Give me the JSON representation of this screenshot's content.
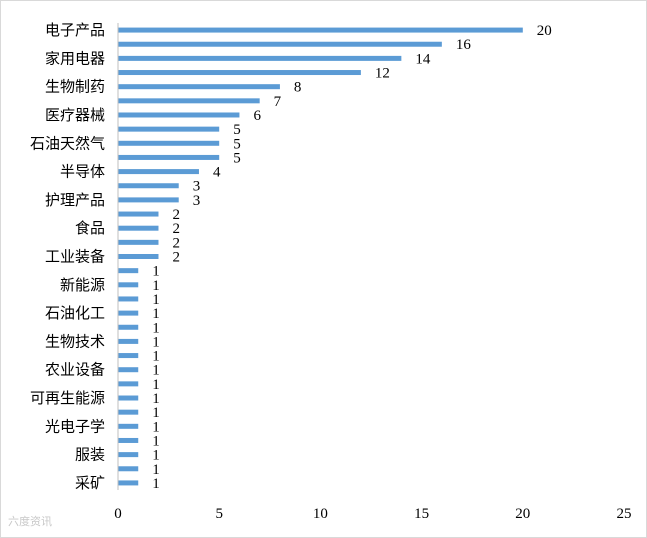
{
  "chart_data": {
    "type": "bar",
    "orientation": "horizontal",
    "bars": [
      {
        "label": "电子产品",
        "value": 20
      },
      {
        "label": "",
        "value": 16
      },
      {
        "label": "家用电器",
        "value": 14
      },
      {
        "label": "",
        "value": 12
      },
      {
        "label": "生物制药",
        "value": 8
      },
      {
        "label": "",
        "value": 7
      },
      {
        "label": "医疗器械",
        "value": 6
      },
      {
        "label": "",
        "value": 5
      },
      {
        "label": "石油天然气",
        "value": 5
      },
      {
        "label": "",
        "value": 5
      },
      {
        "label": "半导体",
        "value": 4
      },
      {
        "label": "",
        "value": 3
      },
      {
        "label": "护理产品",
        "value": 3
      },
      {
        "label": "",
        "value": 2
      },
      {
        "label": "食品",
        "value": 2
      },
      {
        "label": "",
        "value": 2
      },
      {
        "label": "工业装备",
        "value": 2
      },
      {
        "label": "",
        "value": 1
      },
      {
        "label": "新能源",
        "value": 1
      },
      {
        "label": "",
        "value": 1
      },
      {
        "label": "石油化工",
        "value": 1
      },
      {
        "label": "",
        "value": 1
      },
      {
        "label": "生物技术",
        "value": 1
      },
      {
        "label": "",
        "value": 1
      },
      {
        "label": "农业设备",
        "value": 1
      },
      {
        "label": "",
        "value": 1
      },
      {
        "label": "可再生能源",
        "value": 1
      },
      {
        "label": "",
        "value": 1
      },
      {
        "label": "光电子学",
        "value": 1
      },
      {
        "label": "",
        "value": 1
      },
      {
        "label": "服装",
        "value": 1
      },
      {
        "label": "",
        "value": 1
      },
      {
        "label": "采矿",
        "value": 1
      }
    ],
    "xticks": [
      "0",
      "5",
      "10",
      "15",
      "20",
      "25"
    ],
    "xlim": [
      0,
      25
    ],
    "title": "",
    "xlabel": "",
    "ylabel": "",
    "grid": false,
    "bar_color": "#5b9bd5"
  },
  "watermark": "六度资讯"
}
